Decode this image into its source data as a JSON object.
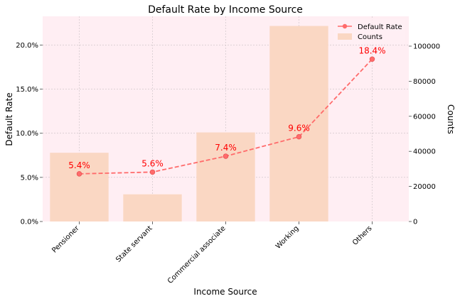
{
  "chart_data": {
    "type": "bar+line",
    "title": "Default Rate by Income Source",
    "xlabel": "Income Source",
    "ylabel_left": "Default Rate",
    "ylabel_right": "Counts",
    "categories": [
      "Pensioner",
      "State servant",
      "Commercial associate",
      "Working",
      "Others"
    ],
    "counts": {
      "name": "Counts",
      "values": [
        39200,
        15500,
        50800,
        111500,
        0
      ],
      "color": "#fad7c3"
    },
    "default_rate": {
      "name": "Default Rate",
      "values": [
        0.054,
        0.056,
        0.074,
        0.096,
        0.184
      ],
      "labels": [
        "5.4%",
        "5.6%",
        "7.4%",
        "9.6%",
        "18.4%"
      ],
      "color": "#ff6b6b",
      "label_color": "#ff0000"
    },
    "left_ylim": [
      0,
      0.2325
    ],
    "left_ticks": [
      0,
      0.05,
      0.1,
      0.15,
      0.2
    ],
    "left_tick_labels": [
      "0.0%",
      "5.0%",
      "10.0%",
      "15.0%",
      "20.0%"
    ],
    "right_ylim": [
      0,
      117000
    ],
    "right_ticks": [
      0,
      20000,
      40000,
      60000,
      80000,
      100000
    ],
    "right_tick_labels": [
      "0",
      "20000",
      "40000",
      "60000",
      "80000",
      "100000"
    ],
    "legend_position": "top-right",
    "grid": true,
    "background": "#ffeef3"
  }
}
